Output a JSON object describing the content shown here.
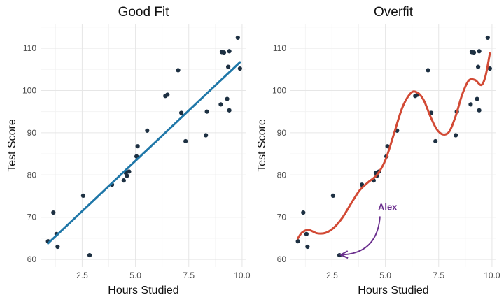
{
  "chart_data": [
    {
      "id": "good",
      "type": "scatter",
      "title": "Good Fit",
      "xlabel": "Hours Studied",
      "ylabel": "Test Score",
      "xlim": [
        0.55,
        10.2
      ],
      "ylim": [
        58.2,
        115.8
      ],
      "xticks": [
        2.5,
        5.0,
        7.5,
        10.0
      ],
      "xtick_labels": [
        "2.5",
        "5.0",
        "7.5",
        "10.0"
      ],
      "yticks": [
        60,
        70,
        80,
        90,
        100,
        110
      ],
      "ytick_labels": [
        "60",
        "70",
        "80",
        "90",
        "100",
        "110"
      ],
      "point_color": "#1d3042",
      "points": [
        {
          "x": 0.9,
          "y": 64.3
        },
        {
          "x": 1.15,
          "y": 71.1
        },
        {
          "x": 1.3,
          "y": 66.0
        },
        {
          "x": 1.35,
          "y": 63.0
        },
        {
          "x": 2.55,
          "y": 75.1
        },
        {
          "x": 2.85,
          "y": 61.0
        },
        {
          "x": 3.9,
          "y": 77.7
        },
        {
          "x": 4.45,
          "y": 78.7
        },
        {
          "x": 4.55,
          "y": 80.5
        },
        {
          "x": 4.6,
          "y": 79.8
        },
        {
          "x": 4.7,
          "y": 80.8
        },
        {
          "x": 5.05,
          "y": 84.4
        },
        {
          "x": 5.1,
          "y": 86.8
        },
        {
          "x": 5.55,
          "y": 90.5
        },
        {
          "x": 6.4,
          "y": 98.7
        },
        {
          "x": 6.5,
          "y": 99.0
        },
        {
          "x": 7.0,
          "y": 104.8
        },
        {
          "x": 7.15,
          "y": 94.7
        },
        {
          "x": 7.35,
          "y": 88.0
        },
        {
          "x": 8.3,
          "y": 89.4
        },
        {
          "x": 8.35,
          "y": 95.0
        },
        {
          "x": 9.0,
          "y": 96.7
        },
        {
          "x": 9.05,
          "y": 109.1
        },
        {
          "x": 9.15,
          "y": 109.0
        },
        {
          "x": 9.35,
          "y": 105.6
        },
        {
          "x": 9.3,
          "y": 98.0
        },
        {
          "x": 9.4,
          "y": 95.3
        },
        {
          "x": 9.4,
          "y": 109.3
        },
        {
          "x": 9.8,
          "y": 112.5
        },
        {
          "x": 9.9,
          "y": 105.2
        }
      ],
      "fit": {
        "type": "linear",
        "color": "#1f77a8",
        "x": [
          0.9,
          9.9
        ],
        "y": [
          63.8,
          106.7
        ]
      }
    },
    {
      "id": "over",
      "type": "scatter",
      "title": "Overfit",
      "xlabel": "Hours Studied",
      "ylabel": "Test Score",
      "xlim": [
        0.55,
        10.2
      ],
      "ylim": [
        58.2,
        115.8
      ],
      "xticks": [
        2.5,
        5.0,
        7.5,
        10.0
      ],
      "xtick_labels": [
        "2.5",
        "5.0",
        "7.5",
        "10.0"
      ],
      "yticks": [
        60,
        70,
        80,
        90,
        100,
        110
      ],
      "ytick_labels": [
        "60",
        "70",
        "80",
        "90",
        "100",
        "110"
      ],
      "point_color": "#1d3042",
      "points": [
        {
          "x": 0.9,
          "y": 64.3
        },
        {
          "x": 1.15,
          "y": 71.1
        },
        {
          "x": 1.3,
          "y": 66.0
        },
        {
          "x": 1.35,
          "y": 63.0
        },
        {
          "x": 2.55,
          "y": 75.1
        },
        {
          "x": 2.85,
          "y": 61.0
        },
        {
          "x": 3.9,
          "y": 77.7
        },
        {
          "x": 4.45,
          "y": 78.7
        },
        {
          "x": 4.55,
          "y": 80.5
        },
        {
          "x": 4.6,
          "y": 79.8
        },
        {
          "x": 4.7,
          "y": 80.8
        },
        {
          "x": 5.05,
          "y": 84.4
        },
        {
          "x": 5.1,
          "y": 86.8
        },
        {
          "x": 5.55,
          "y": 90.5
        },
        {
          "x": 6.4,
          "y": 98.7
        },
        {
          "x": 6.5,
          "y": 99.0
        },
        {
          "x": 7.0,
          "y": 104.8
        },
        {
          "x": 7.15,
          "y": 94.7
        },
        {
          "x": 7.35,
          "y": 88.0
        },
        {
          "x": 8.3,
          "y": 89.4
        },
        {
          "x": 8.35,
          "y": 95.0
        },
        {
          "x": 9.0,
          "y": 96.7
        },
        {
          "x": 9.05,
          "y": 109.1
        },
        {
          "x": 9.15,
          "y": 109.0
        },
        {
          "x": 9.35,
          "y": 105.6
        },
        {
          "x": 9.3,
          "y": 98.0
        },
        {
          "x": 9.4,
          "y": 95.3
        },
        {
          "x": 9.4,
          "y": 109.3
        },
        {
          "x": 9.8,
          "y": 112.5
        },
        {
          "x": 9.9,
          "y": 105.2
        }
      ],
      "fit": {
        "type": "overfit-curve",
        "color": "#d24a35",
        "x": [
          0.9,
          1.1,
          1.4,
          1.8,
          2.2,
          2.6,
          3.0,
          3.4,
          3.8,
          4.2,
          4.6,
          5.0,
          5.4,
          5.8,
          6.2,
          6.5,
          6.8,
          7.1,
          7.4,
          7.7,
          8.0,
          8.3,
          8.6,
          8.9,
          9.2,
          9.5,
          9.7,
          9.9
        ],
        "y": [
          65.0,
          66.4,
          67.0,
          66.2,
          66.3,
          67.6,
          70.0,
          73.3,
          76.4,
          78.3,
          80.0,
          83.5,
          89.7,
          96.0,
          99.4,
          99.5,
          97.7,
          94.0,
          90.9,
          89.6,
          90.3,
          94.0,
          99.0,
          102.3,
          102.5,
          101.3,
          103.5,
          108.8
        ]
      },
      "annotation": {
        "text": "Alex",
        "color": "#6b2f8e",
        "from": [
          4.75,
          70.2
        ],
        "to": [
          2.95,
          61.1
        ]
      }
    }
  ]
}
